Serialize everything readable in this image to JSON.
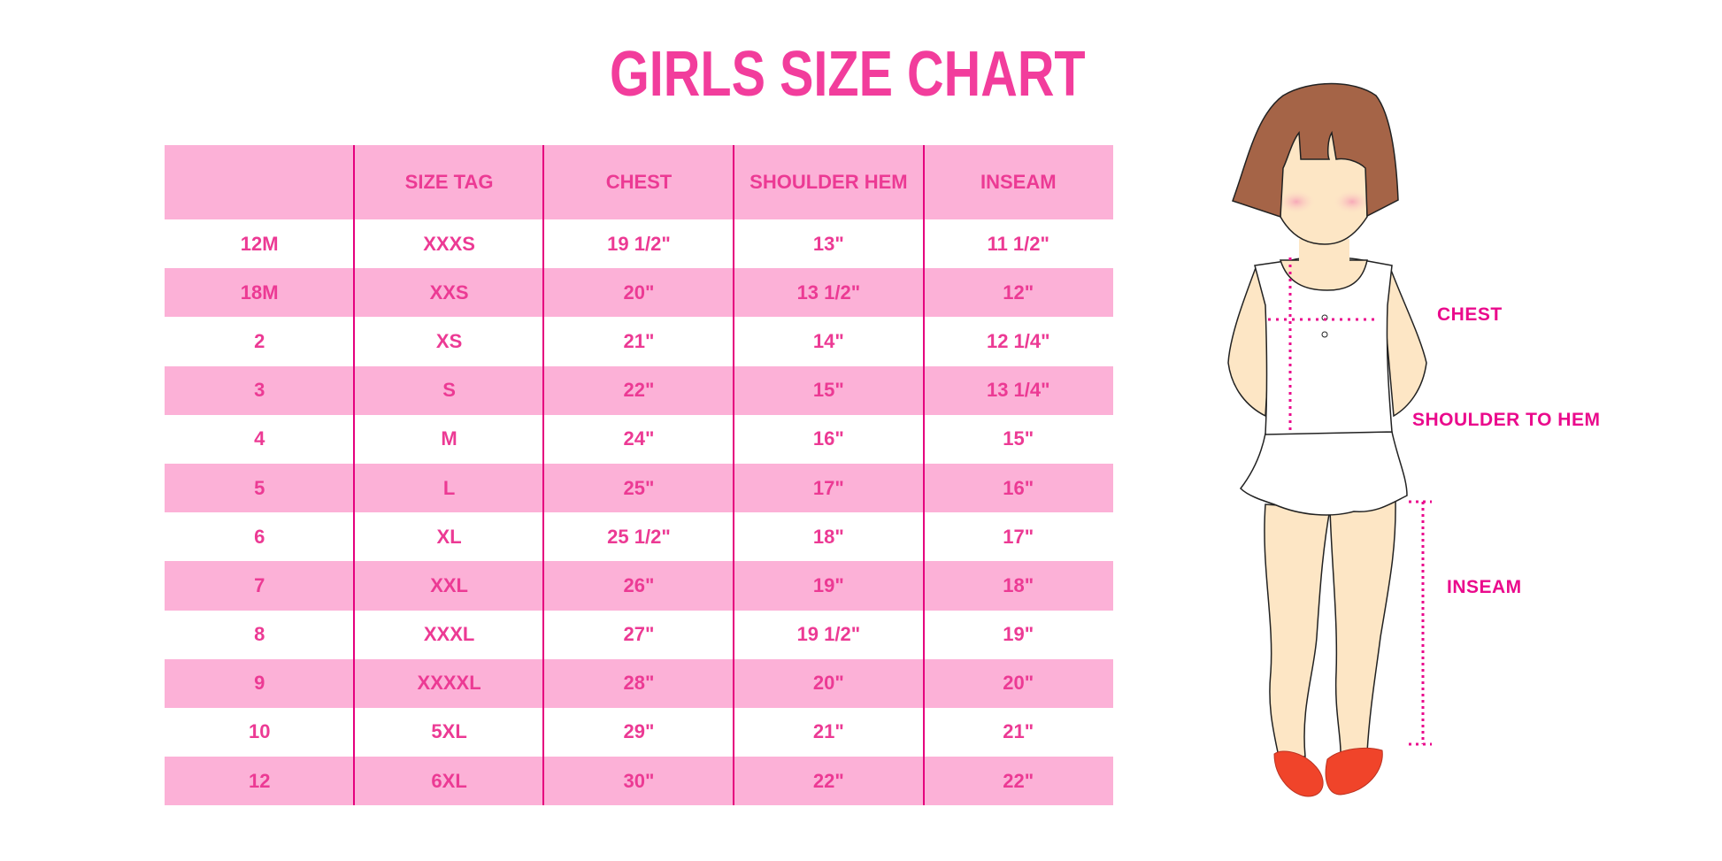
{
  "title": "GIRLS SIZE CHART",
  "colors": {
    "accent": "#f23d9c",
    "row_pink": "#fcb1d7",
    "divider": "#e5007e"
  },
  "table": {
    "headers": [
      "",
      "SIZE TAG",
      "CHEST",
      "SHOULDER HEM",
      "INSEAM"
    ],
    "rows": [
      [
        "12M",
        "XXXS",
        "19 1/2\"",
        "13\"",
        "11 1/2\""
      ],
      [
        "18M",
        "XXS",
        "20\"",
        "13 1/2\"",
        "12\""
      ],
      [
        "2",
        "XS",
        "21\"",
        "14\"",
        "12 1/4\""
      ],
      [
        "3",
        "S",
        "22\"",
        "15\"",
        "13 1/4\""
      ],
      [
        "4",
        "M",
        "24\"",
        "16\"",
        "15\""
      ],
      [
        "5",
        "L",
        "25\"",
        "17\"",
        "16\""
      ],
      [
        "6",
        "XL",
        "25 1/2\"",
        "18\"",
        "17\""
      ],
      [
        "7",
        "XXL",
        "26\"",
        "19\"",
        "18\""
      ],
      [
        "8",
        "XXXL",
        "27\"",
        "19 1/2\"",
        "19\""
      ],
      [
        "9",
        "XXXXL",
        "28\"",
        "20\"",
        "20\""
      ],
      [
        "10",
        "5XL",
        "29\"",
        "21\"",
        "21\""
      ],
      [
        "12",
        "6XL",
        "30\"",
        "22\"",
        "22\""
      ]
    ]
  },
  "diagram": {
    "labels": {
      "chest": "CHEST",
      "shoulder_to_hem": "SHOULDER TO HEM",
      "inseam": "INSEAM"
    }
  }
}
